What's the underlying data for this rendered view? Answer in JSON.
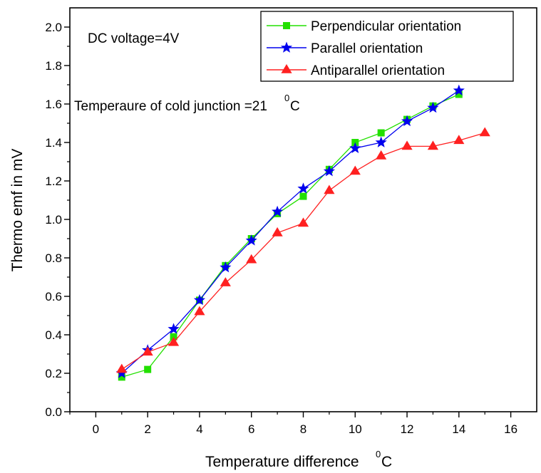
{
  "chart_data": {
    "type": "line",
    "xlabel": "Temperature difference",
    "xlabel_unit": "C",
    "ylabel": "Thermo emf in mV",
    "xlim": [
      -1,
      17
    ],
    "ylim": [
      0,
      2.1
    ],
    "xticks": [
      0,
      2,
      4,
      6,
      8,
      10,
      12,
      14,
      16
    ],
    "yticks": [
      0.0,
      0.2,
      0.4,
      0.6,
      0.8,
      1.0,
      1.2,
      1.4,
      1.6,
      1.8,
      2.0
    ],
    "xtick_labels": [
      "0",
      "2",
      "4",
      "6",
      "8",
      "10",
      "12",
      "14",
      "16"
    ],
    "ytick_labels": [
      "0.0",
      "0.2",
      "0.4",
      "0.6",
      "0.8",
      "1.0",
      "1.2",
      "1.4",
      "1.6",
      "1.8",
      "2.0"
    ],
    "legend_placement": "top-right",
    "series": [
      {
        "name": "Perpendicular orientation",
        "color": "#22e000",
        "marker": "square",
        "x": [
          1,
          2,
          3,
          4,
          5,
          6,
          7,
          8,
          9,
          10,
          11,
          12,
          13,
          14
        ],
        "y": [
          0.18,
          0.22,
          0.39,
          0.58,
          0.76,
          0.9,
          1.03,
          1.12,
          1.26,
          1.4,
          1.45,
          1.52,
          1.59,
          1.65
        ]
      },
      {
        "name": "Parallel orientation",
        "color": "#0000ee",
        "marker": "star",
        "x": [
          1,
          2,
          3,
          4,
          5,
          6,
          7,
          8,
          9,
          10,
          11,
          12,
          13,
          14
        ],
        "y": [
          0.2,
          0.32,
          0.43,
          0.58,
          0.75,
          0.89,
          1.04,
          1.16,
          1.25,
          1.37,
          1.4,
          1.51,
          1.58,
          1.67
        ]
      },
      {
        "name": "Antiparallel orientation",
        "color": "#ff2020",
        "marker": "triangle",
        "x": [
          1,
          2,
          3,
          4,
          5,
          6,
          7,
          8,
          9,
          10,
          11,
          12,
          13,
          14,
          15
        ],
        "y": [
          0.22,
          0.31,
          0.36,
          0.52,
          0.67,
          0.79,
          0.93,
          0.98,
          1.15,
          1.25,
          1.33,
          1.38,
          1.38,
          1.41,
          1.45
        ]
      }
    ],
    "annotations": {
      "dc_voltage": "DC voltage=4V",
      "cold_junction": "Temperaure of cold junction =21",
      "cold_junction_unit": "C",
      "degree_mark": "0"
    }
  }
}
